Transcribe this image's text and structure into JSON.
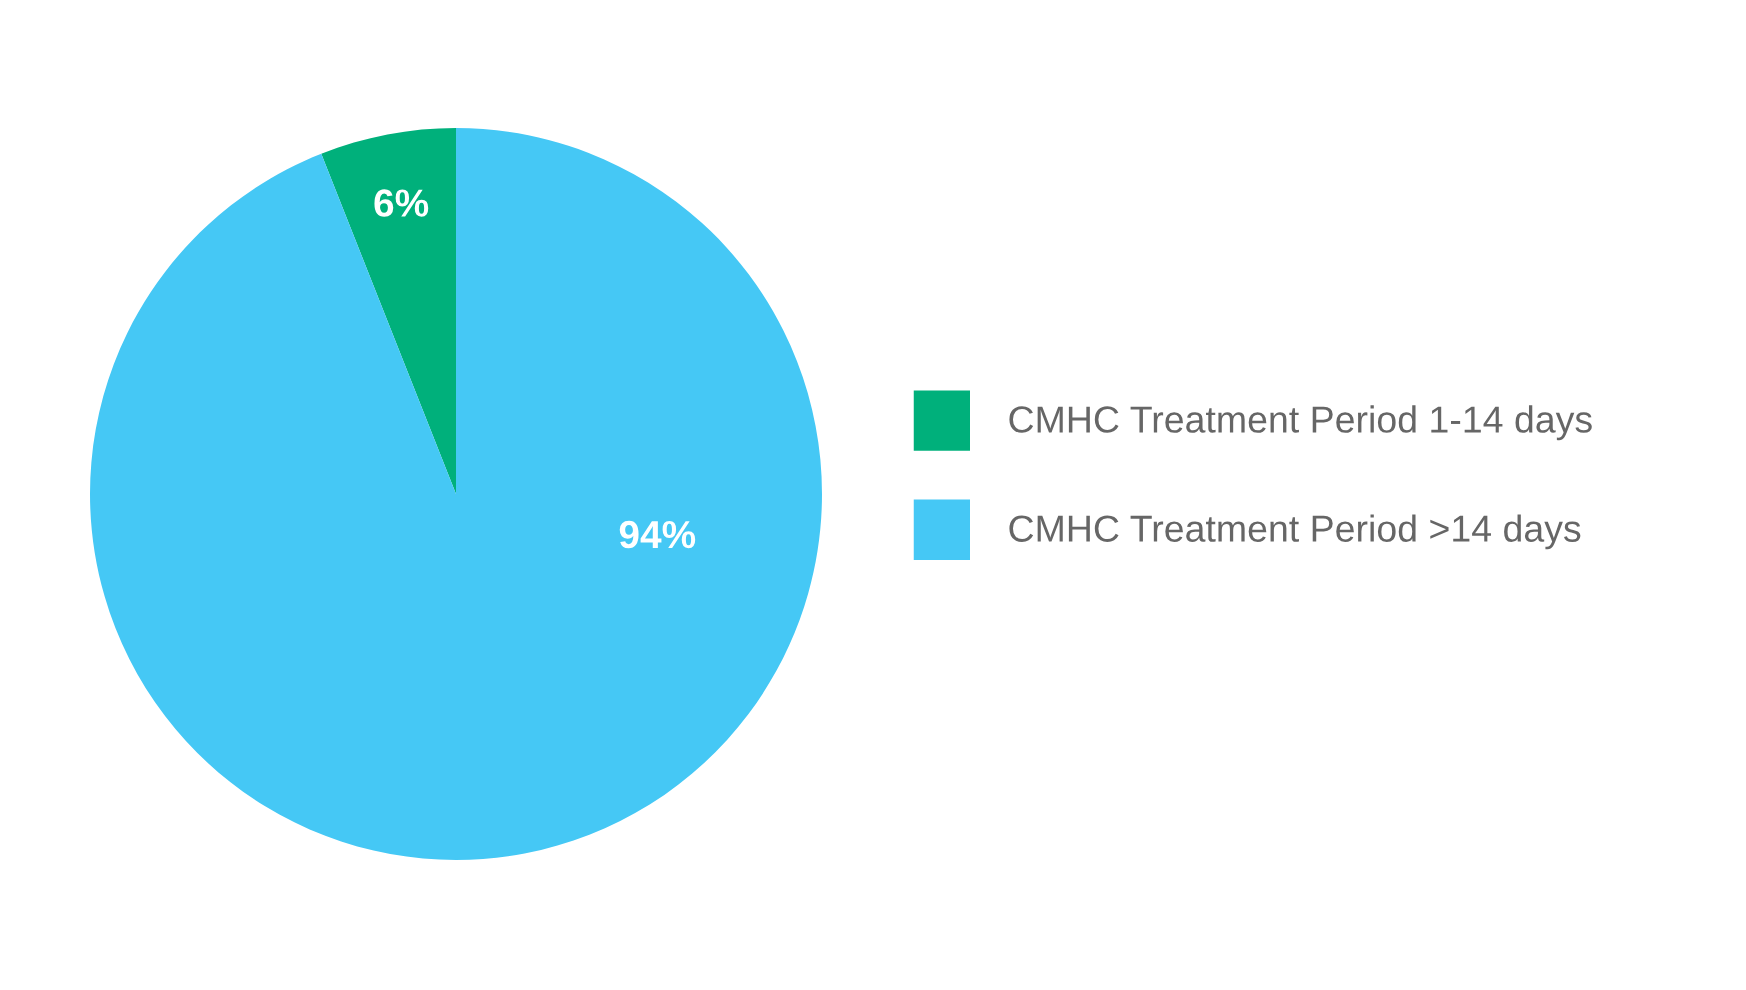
{
  "chart_data": {
    "type": "pie",
    "categories": [
      "CMHC Treatment Period 1-14 days",
      "CMHC Treatment Period >14 days"
    ],
    "values": [
      6,
      94
    ],
    "colors": [
      "#00b07b",
      "#45c8f5"
    ],
    "value_labels": [
      "6%",
      "94%"
    ],
    "legend": "right"
  }
}
